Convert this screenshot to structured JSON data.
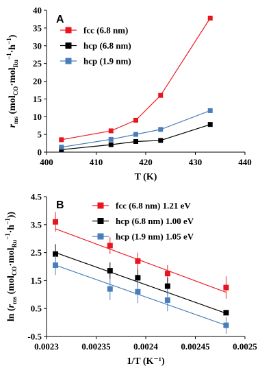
{
  "chart_data": [
    {
      "type": "line",
      "panel_label": "A",
      "xlabel": "T (K)",
      "ylabel": {
        "base": "r",
        "base_sub": "ms",
        "unit": "(mol",
        "unit_sub1": "CO",
        "dot1": "·mol",
        "unit_sub2": "Ru",
        "sup": "−1",
        "tail": "·h",
        "tail_sup": "−1",
        "close": ")"
      },
      "xlim": [
        400,
        440
      ],
      "ylim": [
        0,
        40
      ],
      "xticks": [
        "400",
        "410",
        "420",
        "430",
        "440"
      ],
      "yticks": [
        "0",
        "5",
        "10",
        "15",
        "20",
        "25",
        "30",
        "35",
        "40"
      ],
      "xtick_values": [
        400,
        410,
        420,
        430,
        440
      ],
      "ytick_values": [
        0,
        5,
        10,
        15,
        20,
        25,
        30,
        35,
        40
      ],
      "legend_position": "top-left",
      "series": [
        {
          "name": "fcc (6.8 nm)",
          "color": "#ee1c25",
          "marker_color": "#e8141e",
          "x": [
            403,
            413,
            418,
            423,
            433
          ],
          "y": [
            3.5,
            6.0,
            9.0,
            16.0,
            37.8
          ]
        },
        {
          "name": "hcp (6.8 nm)",
          "color": "#000000",
          "marker_color": "#000000",
          "x": [
            403,
            413,
            418,
            423,
            433
          ],
          "y": [
            0.7,
            2.1,
            3.0,
            3.3,
            7.8
          ]
        },
        {
          "name": "hcp (1.9 nm)",
          "color": "#4a7ebb",
          "marker_color": "#4a7ebb",
          "x": [
            403,
            413,
            418,
            423,
            433
          ],
          "y": [
            1.4,
            3.6,
            5.0,
            6.4,
            11.7
          ]
        }
      ]
    },
    {
      "type": "scatter",
      "panel_label": "B",
      "xlabel": "1/T (K⁻¹)",
      "ylabel": {
        "prefix": "ln (",
        "base": "r",
        "base_sub": "ms",
        "unit": "(mol",
        "unit_sub1": "CO",
        "dot1": "·mol",
        "unit_sub2": "Ru",
        "sup": "−1",
        "tail": "·h",
        "tail_sup": "−1",
        "close": "))"
      },
      "xlim": [
        0.0023,
        0.0025
      ],
      "ylim": [
        -0.5,
        4.5
      ],
      "xticks": [
        "0.0023",
        "0.00235",
        "0.0024",
        "0.00245",
        "0.0025"
      ],
      "yticks": [
        "-0.5",
        "0.5",
        "1.5",
        "2.5",
        "3.5",
        "4.5"
      ],
      "xtick_values": [
        0.0023,
        0.00235,
        0.0024,
        0.00245,
        0.0025
      ],
      "ytick_values": [
        -0.5,
        0.5,
        1.5,
        2.5,
        3.5,
        4.5
      ],
      "legend_position": "top-right",
      "series": [
        {
          "name": "fcc (6.8 nm) 1.21 eV",
          "color": "#ee1c25",
          "marker_color": "#e8141e",
          "x": [
            0.002309,
            0.002364,
            0.002392,
            0.002422,
            0.002481
          ],
          "y": [
            3.6,
            2.75,
            2.2,
            1.75,
            1.25
          ],
          "err": [
            0.35,
            0.3,
            0.3,
            0.3,
            0.4
          ],
          "fit": [
            [
              0.002309,
              3.35
            ],
            [
              0.002481,
              1.08
            ]
          ]
        },
        {
          "name": "hcp (6.8 nm) 1.00 eV",
          "color": "#000000",
          "marker_color": "#000000",
          "x": [
            0.002309,
            0.002364,
            0.002392,
            0.002422,
            0.002481
          ],
          "y": [
            2.45,
            1.85,
            1.6,
            1.3,
            0.35
          ],
          "err": [
            0.35,
            0.3,
            0.3,
            0.3,
            0.0
          ],
          "fit": [
            [
              0.002309,
              2.5
            ],
            [
              0.002481,
              0.33
            ]
          ]
        },
        {
          "name": "hcp (1.9 nm) 1.05 eV",
          "color": "#4a7ebb",
          "marker_color": "#4a7ebb",
          "x": [
            0.002309,
            0.002364,
            0.002392,
            0.002422,
            0.002481
          ],
          "y": [
            2.05,
            1.2,
            1.1,
            0.8,
            -0.1
          ],
          "err": [
            0.35,
            0.4,
            0.4,
            0.4,
            0.3
          ],
          "fit": [
            [
              0.002309,
              2.05
            ],
            [
              0.002481,
              -0.1
            ]
          ]
        }
      ]
    }
  ]
}
